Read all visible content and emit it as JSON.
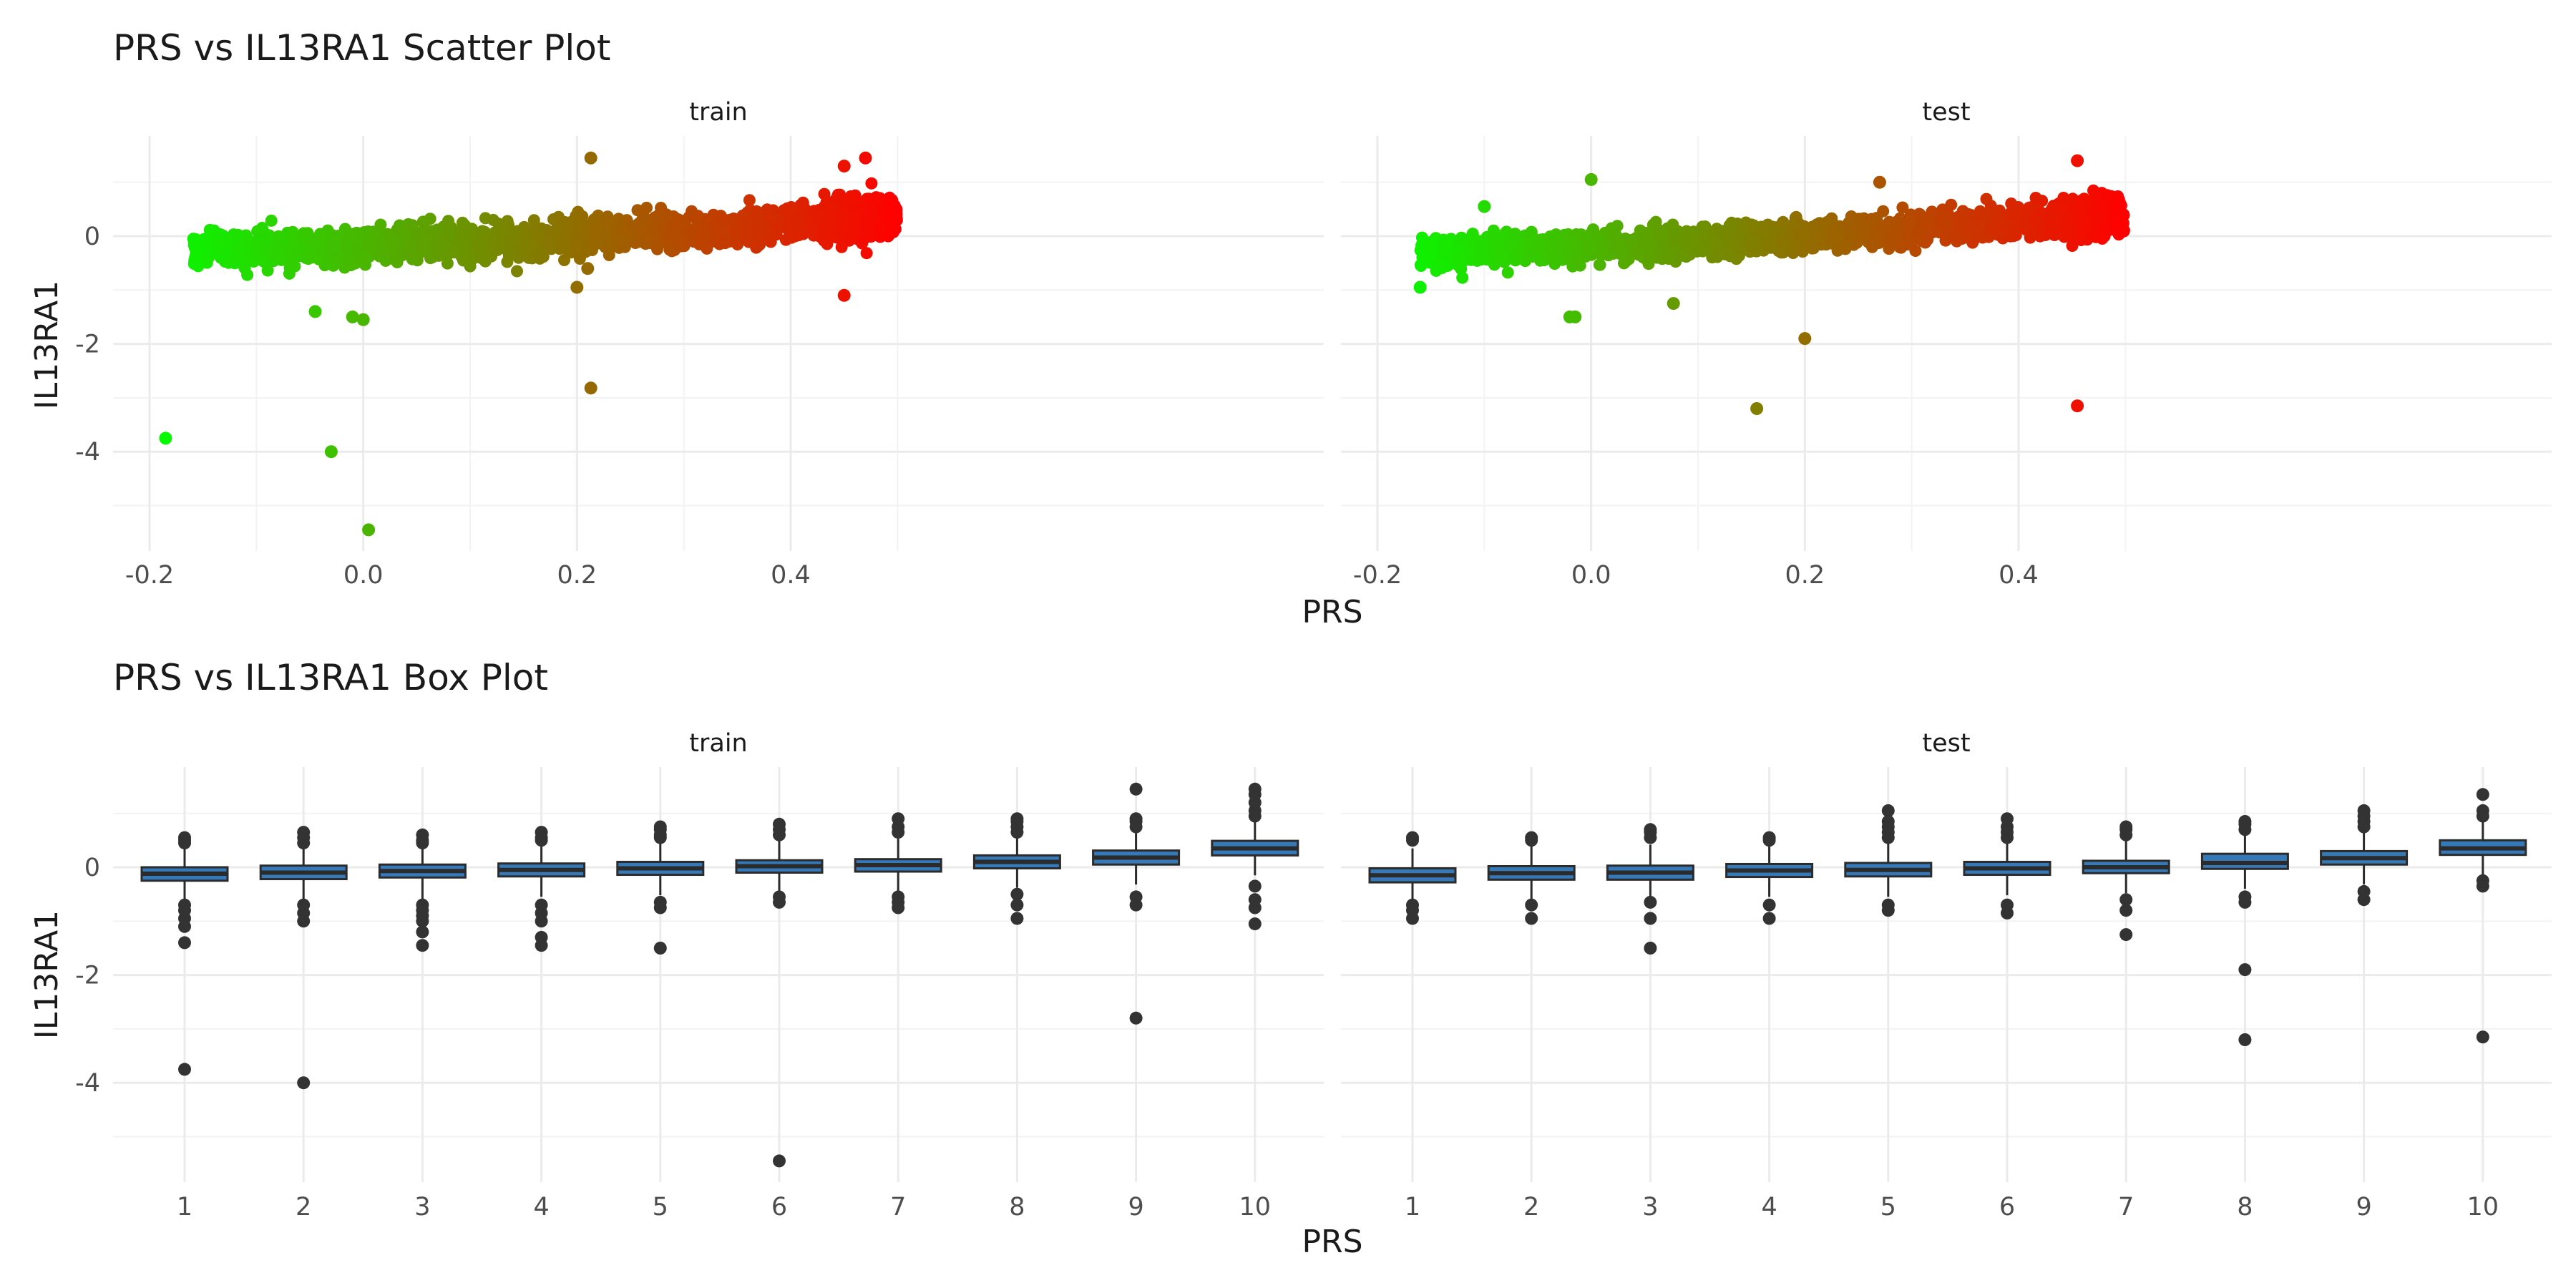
{
  "chart_data": [
    {
      "type": "scatter",
      "title": "PRS vs IL13RA1 Scatter Plot",
      "xlabel": "PRS",
      "ylabel": "IL13RA1",
      "facets": [
        "train",
        "test"
      ],
      "xlim": [
        -0.2,
        0.5
      ],
      "ylim": [
        -5.5,
        1.5
      ],
      "x_ticks": [
        -0.2,
        0.0,
        0.2,
        0.4
      ],
      "x_tick_labels": [
        "-0.2",
        "0.0",
        "0.2",
        "0.4"
      ],
      "y_ticks": [
        -4,
        -2,
        0
      ],
      "y_tick_labels": [
        "-4",
        "-2",
        "0"
      ],
      "grid": true,
      "color_scale": {
        "low": "#00ff00",
        "high": "#ff0000",
        "mapped_to": "PRS"
      },
      "panels": [
        {
          "name": "train",
          "trend": {
            "x": [
              -0.16,
              0.0,
              0.2,
              0.4,
              0.5
            ],
            "y_center": [
              -0.25,
              -0.18,
              0.0,
              0.22,
              0.4
            ],
            "spread": 0.5
          },
          "outliers": {
            "x": [
              -0.185,
              -0.03,
              0.005,
              0.213,
              0.213,
              0.2,
              0.45,
              0.47,
              -0.045,
              -0.01,
              0.0,
              0.21,
              0.45
            ],
            "y": [
              -3.75,
              -4.0,
              -5.45,
              -2.82,
              1.45,
              -0.95,
              -1.1,
              1.45,
              -1.4,
              -1.5,
              -1.55,
              -0.6,
              1.3
            ]
          }
        },
        {
          "name": "test",
          "trend": {
            "x": [
              -0.16,
              0.0,
              0.2,
              0.4,
              0.5
            ],
            "y_center": [
              -0.3,
              -0.2,
              0.0,
              0.25,
              0.42
            ],
            "spread": 0.45
          },
          "outliers": {
            "x": [
              -0.015,
              0.155,
              0.2,
              0.455,
              0.455,
              -0.1,
              -0.02,
              0.077,
              -0.16,
              0.0,
              0.27
            ],
            "y": [
              -1.5,
              -3.2,
              -1.9,
              -3.15,
              1.4,
              0.55,
              -1.5,
              -1.25,
              -0.95,
              1.05,
              1.0
            ]
          }
        }
      ]
    },
    {
      "type": "box",
      "title": "PRS vs IL13RA1 Box Plot",
      "xlabel": "PRS",
      "ylabel": "IL13RA1",
      "facets": [
        "train",
        "test"
      ],
      "categories": [
        "1",
        "2",
        "3",
        "4",
        "5",
        "6",
        "7",
        "8",
        "9",
        "10"
      ],
      "ylim": [
        -5.5,
        1.5
      ],
      "y_ticks": [
        -4,
        -2,
        0
      ],
      "y_tick_labels": [
        "-4",
        "-2",
        "0"
      ],
      "grid": true,
      "box_fill": "#3579b8",
      "box_stroke": "#2b2b2b",
      "panels": [
        {
          "name": "train",
          "median": [
            -0.12,
            -0.1,
            -0.07,
            -0.05,
            -0.02,
            0.02,
            0.04,
            0.1,
            0.18,
            0.35
          ],
          "q1": [
            -0.25,
            -0.22,
            -0.19,
            -0.17,
            -0.14,
            -0.1,
            -0.08,
            -0.02,
            0.05,
            0.22
          ],
          "q3": [
            0.0,
            0.03,
            0.05,
            0.07,
            0.1,
            0.13,
            0.15,
            0.22,
            0.31,
            0.49
          ],
          "whisker_low": [
            -0.65,
            -0.6,
            -0.6,
            -0.55,
            -0.52,
            -0.48,
            -0.45,
            -0.38,
            -0.32,
            -0.15
          ],
          "whisker_high": [
            0.38,
            0.4,
            0.43,
            0.45,
            0.47,
            0.5,
            0.53,
            0.6,
            0.68,
            0.85
          ],
          "outliers": [
            [
              -3.75,
              -1.4,
              -1.1,
              -0.95,
              -0.8,
              -0.7,
              0.45,
              0.5,
              0.55
            ],
            [
              -4.0,
              -1.0,
              -0.85,
              -0.7,
              0.45,
              0.55,
              0.65
            ],
            [
              -1.45,
              -1.2,
              -1.0,
              -0.9,
              -0.8,
              -0.7,
              0.45,
              0.5,
              0.6
            ],
            [
              -1.45,
              -1.3,
              -1.0,
              -0.85,
              -0.7,
              0.5,
              0.55,
              0.65
            ],
            [
              -1.5,
              -0.75,
              -0.65,
              0.55,
              0.6,
              0.7,
              0.75
            ],
            [
              -5.45,
              -0.65,
              -0.55,
              0.6,
              0.7,
              0.8
            ],
            [
              -0.75,
              -0.65,
              -0.55,
              0.65,
              0.75,
              0.9
            ],
            [
              -0.95,
              -0.7,
              -0.5,
              0.65,
              0.75,
              0.85,
              0.9
            ],
            [
              -2.8,
              -0.7,
              -0.55,
              0.75,
              0.85,
              0.9,
              1.45
            ],
            [
              -1.05,
              -0.75,
              -0.6,
              -0.35,
              0.95,
              1.05,
              1.2,
              1.35,
              1.45
            ]
          ]
        },
        {
          "name": "test",
          "median": [
            -0.15,
            -0.11,
            -0.1,
            -0.06,
            -0.05,
            -0.02,
            0.0,
            0.08,
            0.17,
            0.35
          ],
          "q1": [
            -0.28,
            -0.23,
            -0.23,
            -0.18,
            -0.17,
            -0.14,
            -0.11,
            -0.03,
            0.05,
            0.23
          ],
          "q3": [
            -0.02,
            0.02,
            0.03,
            0.06,
            0.08,
            0.1,
            0.12,
            0.25,
            0.3,
            0.5
          ],
          "whisker_low": [
            -0.65,
            -0.6,
            -0.6,
            -0.55,
            -0.55,
            -0.52,
            -0.48,
            -0.4,
            -0.32,
            -0.18
          ],
          "whisker_high": [
            0.35,
            0.4,
            0.42,
            0.43,
            0.45,
            0.48,
            0.5,
            0.62,
            0.68,
            0.85
          ],
          "outliers": [
            [
              -0.95,
              -0.8,
              -0.7,
              0.5,
              0.55
            ],
            [
              -0.95,
              -0.7,
              0.5,
              0.55
            ],
            [
              -1.5,
              -0.95,
              -0.65,
              0.55,
              0.65,
              0.7
            ],
            [
              -0.95,
              -0.7,
              0.5,
              0.55
            ],
            [
              -0.8,
              -0.7,
              0.55,
              0.65,
              0.75,
              0.85,
              1.05
            ],
            [
              -0.85,
              -0.7,
              0.55,
              0.65,
              0.75,
              0.9
            ],
            [
              -1.25,
              -0.8,
              -0.6,
              0.6,
              0.7,
              0.75
            ],
            [
              -3.2,
              -1.9,
              -0.65,
              -0.55,
              0.7,
              0.8,
              0.85
            ],
            [
              -0.6,
              -0.45,
              0.75,
              0.85,
              0.95,
              1.05
            ],
            [
              -3.15,
              -0.35,
              -0.25,
              0.95,
              1.05,
              1.35
            ]
          ]
        }
      ]
    }
  ]
}
